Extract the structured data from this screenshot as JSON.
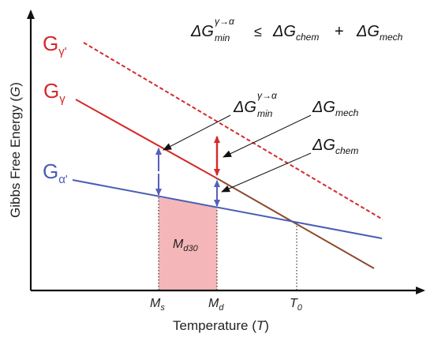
{
  "axes": {
    "y_label": "Gibbs Free Energy (",
    "y_symbol": "G",
    "x_label": "Temperature (",
    "x_symbol": "T",
    "paren_close": ")"
  },
  "ticks": {
    "ms_main": "M",
    "ms_sub": "s",
    "md_main": "M",
    "md_sub": "d",
    "t0_main": "T",
    "t0_sub": "0"
  },
  "curves": {
    "g_gamma_prime": {
      "main": "G",
      "sub": "γ'"
    },
    "g_gamma": {
      "main": "G",
      "sub": "γ"
    },
    "g_alpha_prime": {
      "main": "G",
      "sub": "α'"
    }
  },
  "region": {
    "main": "M",
    "sub": "d30"
  },
  "equation": {
    "lhs_delta": "ΔG",
    "lhs_sup": "γ→α",
    "lhs_sub": "min",
    "leq": "≤",
    "chem_delta": "ΔG",
    "chem_sub": "chem",
    "plus": "+",
    "mech_delta": "ΔG",
    "mech_sub": "mech"
  },
  "annotations": {
    "min": {
      "delta": "ΔG",
      "sup": "γ→α",
      "sub": "min"
    },
    "mech": {
      "delta": "ΔG",
      "sub": "mech"
    },
    "chem": {
      "delta": "ΔG",
      "sub": "chem"
    }
  },
  "colors": {
    "gamma_prime": "#d42a2a",
    "gamma": "#d42a2a",
    "alpha_prime": "#4a5db5",
    "martensite_line": "#8a4a2a",
    "region_fill": "#f4b6b8",
    "arrow_blue": "#5560b8",
    "arrow_red": "#d42a2a",
    "axis": "#111111"
  }
}
